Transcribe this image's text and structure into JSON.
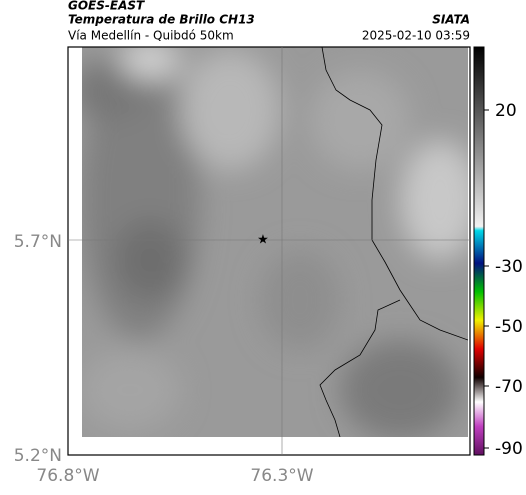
{
  "header": {
    "title": "GOES-EAST",
    "subtitle": "Temperatura de Brillo CH13",
    "source": "SIATA",
    "region": "Vía Medellín - Quibdó 50km",
    "timestamp": "2025-02-10 03:59"
  },
  "map": {
    "lat_labels": [
      "5.7°N",
      "5.2°N"
    ],
    "lon_labels": [
      "76.8°W",
      "76.3°W"
    ]
  },
  "colorbar": {
    "ticks": [
      "20",
      "-30",
      "-50",
      "-70",
      "-90"
    ]
  }
}
